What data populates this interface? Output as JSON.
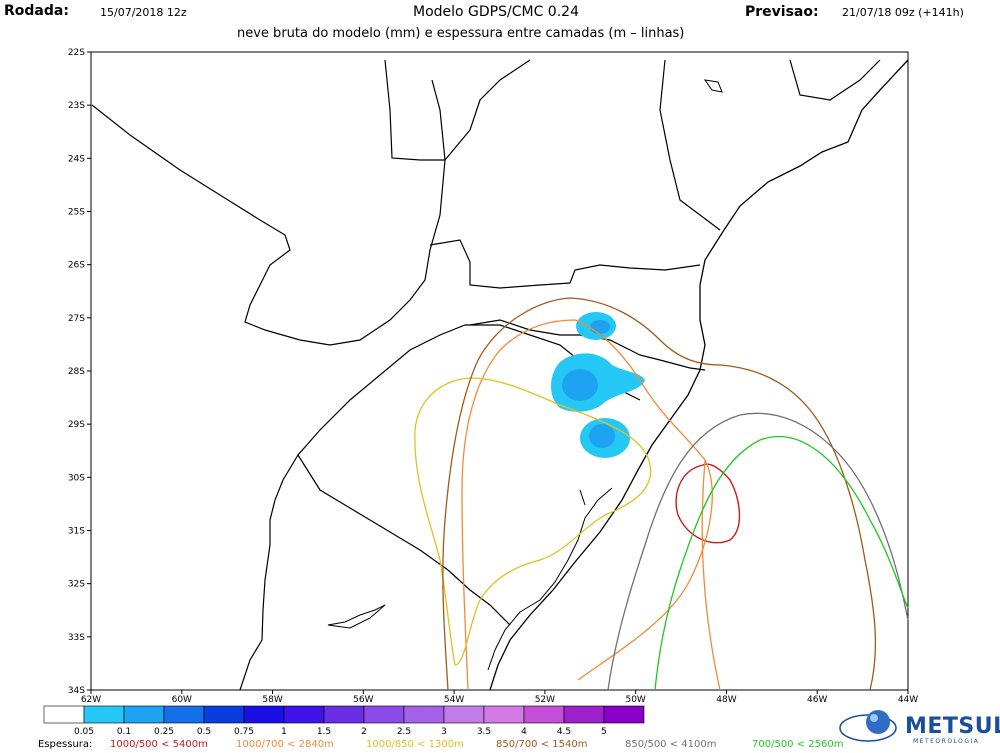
{
  "header": {
    "rodada_label": "Rodada:",
    "rodada_value": "15/07/2018 12z",
    "title": "Modelo GDPS/CMC 0.24",
    "subtitle": "neve bruta do modelo (mm) e espessura entre camadas (m – linhas)",
    "previsao_label": "Previsao:",
    "previsao_value": "21/07/18 09z (+141h)"
  },
  "axes": {
    "lat_labels": [
      "22S",
      "23S",
      "24S",
      "25S",
      "26S",
      "27S",
      "28S",
      "29S",
      "30S",
      "31S",
      "32S",
      "33S",
      "34S"
    ],
    "lon_labels": [
      "62W",
      "60W",
      "58W",
      "56W",
      "54W",
      "52W",
      "50W",
      "48W",
      "46W",
      "44W"
    ],
    "lat_range": [
      -34,
      -22
    ],
    "lon_range": [
      -62,
      -44
    ]
  },
  "colorbar": {
    "labels": [
      "0.05",
      "0.1",
      "0.25",
      "0.5",
      "0.75",
      "1",
      "1.5",
      "2",
      "2.5",
      "3",
      "3.5",
      "4",
      "4.5",
      "5"
    ],
    "colors": [
      "#ffffff",
      "#25c8f5",
      "#1ea3f2",
      "#1470ea",
      "#0a3ce0",
      "#1a10e6",
      "#3e12e8",
      "#6a2ee4",
      "#8a4be6",
      "#a561e8",
      "#c27ce8",
      "#d47ae6",
      "#c44ed8",
      "#9e22cc",
      "#8a00c8"
    ]
  },
  "legend": {
    "prefix": "Espessura:",
    "items": [
      {
        "text": "1000/500 < 5400m",
        "color": "#cc1a1a"
      },
      {
        "text": "1000/700 < 2840m",
        "color": "#f08a3a"
      },
      {
        "text": "1000/850 < 1300m",
        "color": "#e0c020"
      },
      {
        "text": "850/700 < 1540m",
        "color": "#a05a1a"
      },
      {
        "text": "850/500 < 4100m",
        "color": "#707070"
      },
      {
        "text": "700/500 < 2560m",
        "color": "#20c820"
      }
    ]
  },
  "logo": {
    "name": "METSUL",
    "tagline": "METEOROLOGIA"
  }
}
